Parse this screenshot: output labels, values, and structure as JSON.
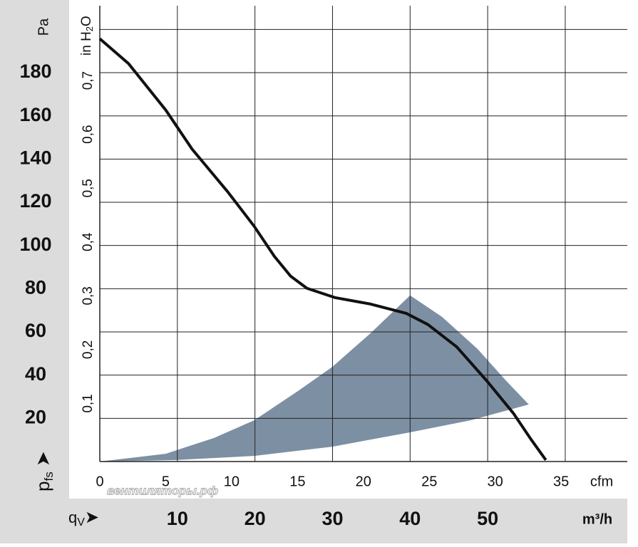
{
  "chart_data": {
    "type": "line",
    "y_axis_label": "Pa",
    "y_symbol": "p",
    "y_symbol_sub": "fs",
    "y2_axis_label": "in H",
    "y2_axis_label_sub": "2",
    "y2_axis_label_end": "O",
    "x_axis_label": "m³/h",
    "x_symbol": "q",
    "x_symbol_sub": "V",
    "x2_axis_label": "cfm",
    "watermark": "вентиляторы.рф",
    "xlim": [
      0,
      68
    ],
    "ylim": [
      0,
      211
    ],
    "xticks": [
      10,
      20,
      30,
      40,
      50
    ],
    "xgrid": [
      0,
      10,
      20,
      30,
      40,
      50,
      60
    ],
    "yticks": [
      20,
      40,
      60,
      80,
      100,
      120,
      140,
      160,
      180
    ],
    "ygrid": [
      0,
      20,
      40,
      60,
      80,
      100,
      120,
      140,
      160,
      180,
      200
    ],
    "cfm_to_m3h": 1.699,
    "x2ticks": [
      0,
      5,
      10,
      15,
      20,
      25,
      30,
      35
    ],
    "inh2o_to_pa": 249.1,
    "y2ticks": [
      {
        "value": 0.1,
        "label": "0,1"
      },
      {
        "value": 0.2,
        "label": "0,2"
      },
      {
        "value": 0.3,
        "label": "0,3"
      },
      {
        "value": 0.4,
        "label": "0,4"
      },
      {
        "value": 0.5,
        "label": "0,5"
      },
      {
        "value": 0.6,
        "label": "0,6"
      },
      {
        "value": 0.7,
        "label": "0,7"
      }
    ],
    "grid": true,
    "series": [
      {
        "color": "#111111",
        "x": [
          0,
          3.7,
          8.5,
          11.9,
          16.5,
          19.9,
          22.5,
          24.6,
          26.7,
          30.3,
          34.9,
          39.5,
          42.3,
          46,
          49.9,
          53.3,
          55.6,
          57.5
        ],
        "values": [
          195.7,
          184.2,
          162.7,
          144.6,
          124.8,
          108.9,
          95,
          85.8,
          80.2,
          75.9,
          72.9,
          68.6,
          63.4,
          53.1,
          37.3,
          22.4,
          10.2,
          0.7
        ]
      }
    ],
    "area": {
      "color": "#7d8fa3",
      "x": [
        0,
        8.5,
        14.7,
        19.9,
        25.7,
        30,
        34.9,
        40,
        44.1,
        48.7,
        52.4,
        55.3,
        47.8,
        40,
        30,
        19.9,
        9.9,
        0
      ],
      "values": [
        0,
        3.6,
        10.9,
        19.1,
        33,
        43.9,
        59.4,
        76.9,
        67,
        52.1,
        37.3,
        26.4,
        19.1,
        13.5,
        6.9,
        2.6,
        0.7,
        0
      ]
    }
  }
}
